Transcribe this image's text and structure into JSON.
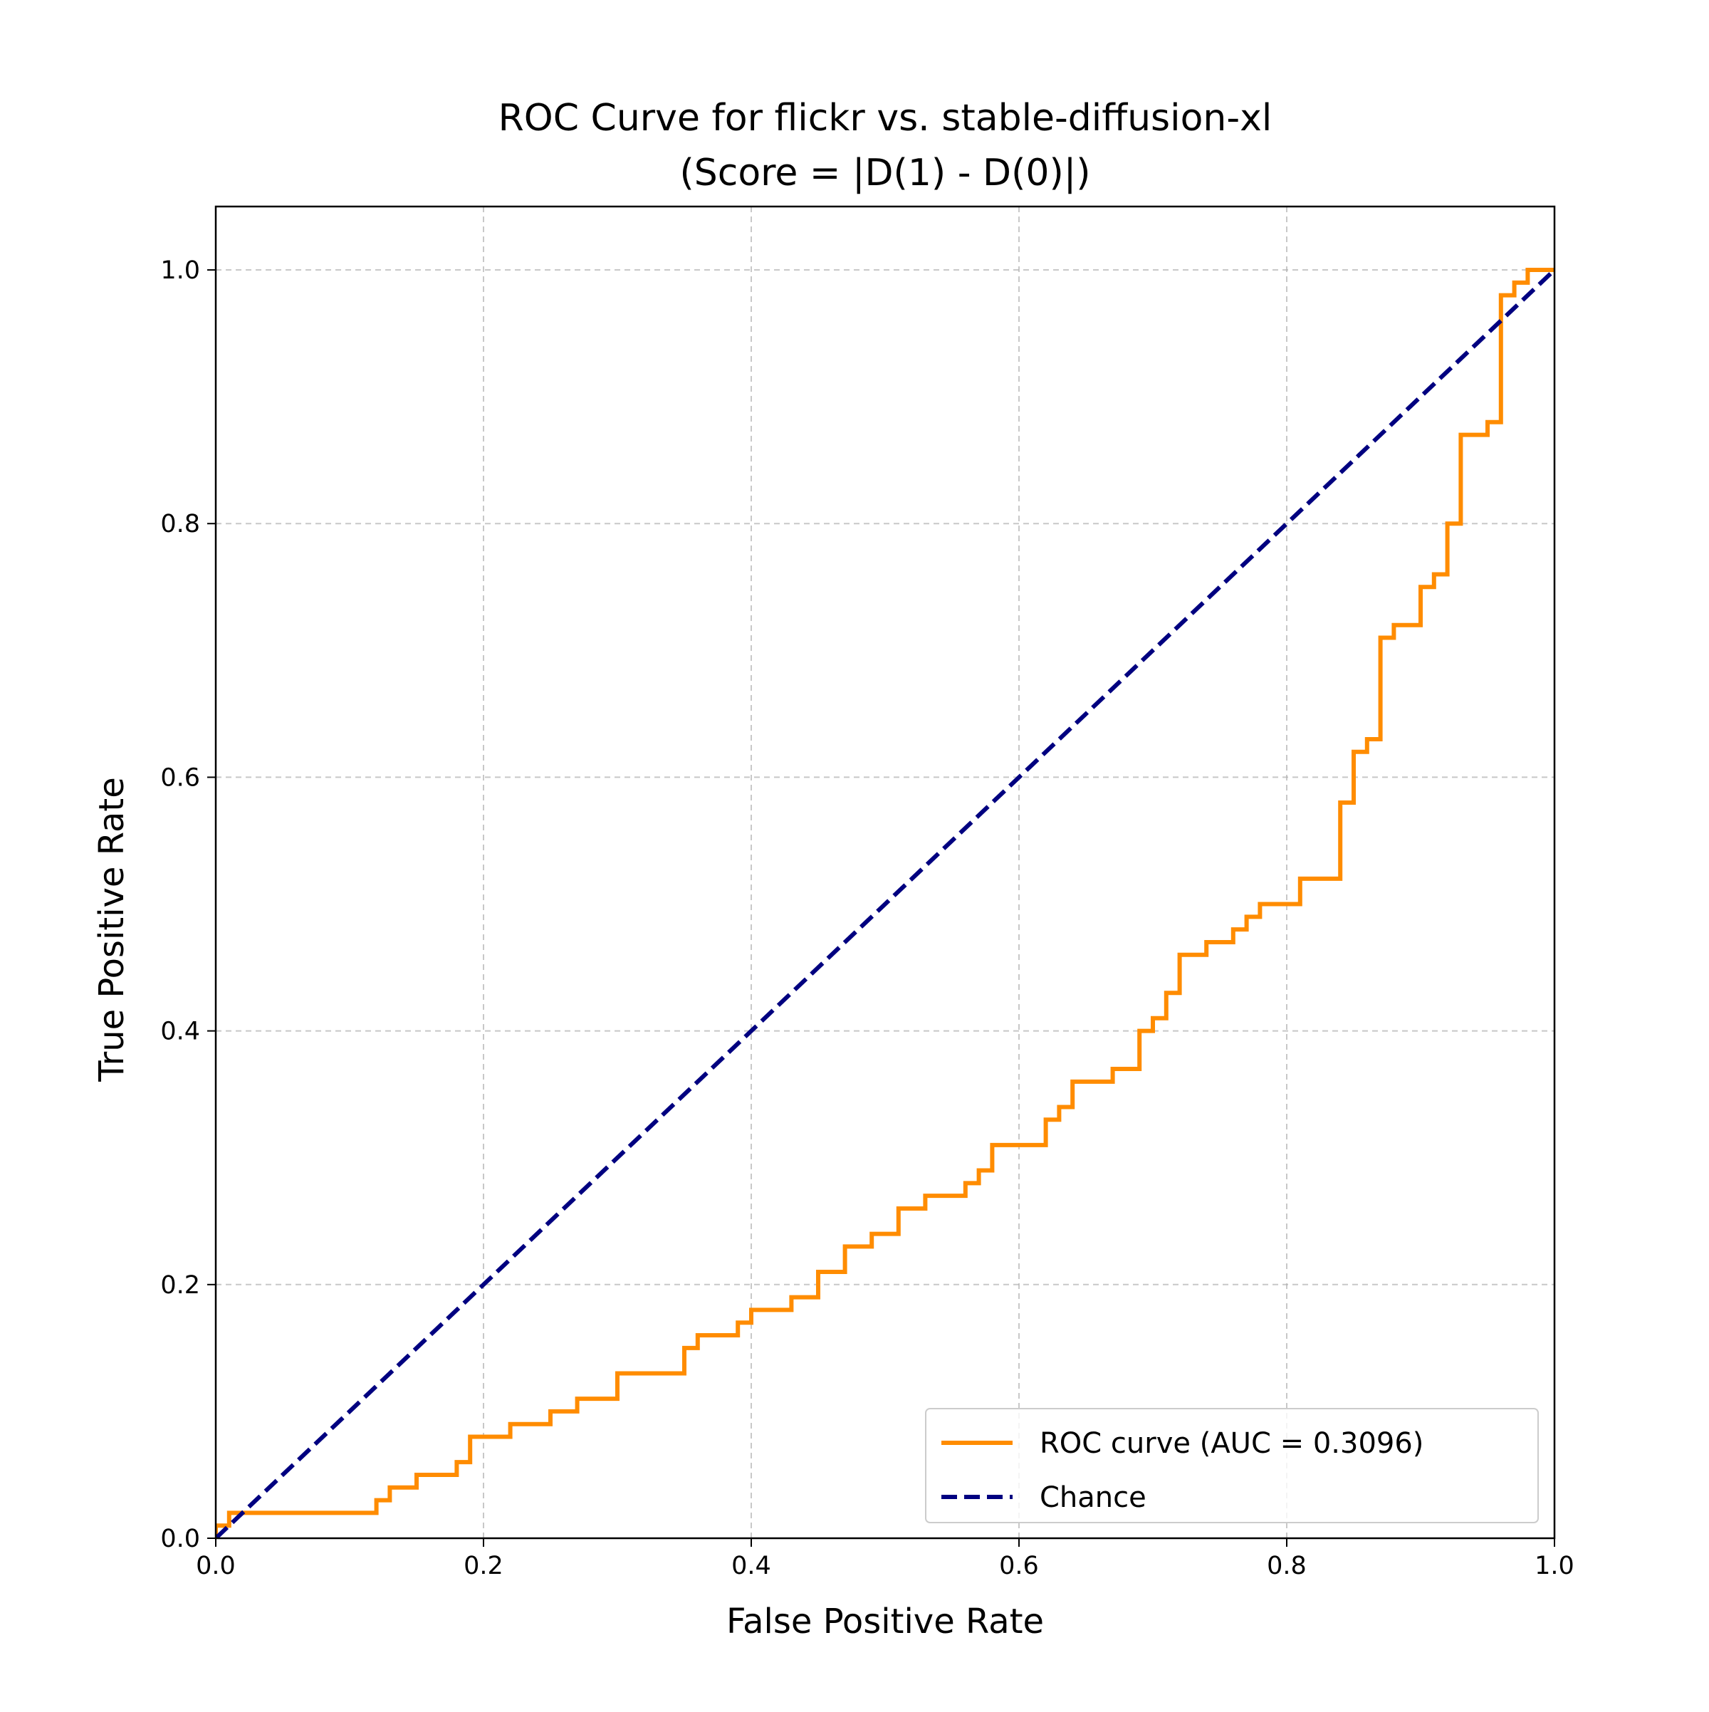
{
  "chart_data": {
    "type": "line",
    "title": [
      "ROC Curve for flickr vs. stable-diffusion-xl",
      "(Score = |D(1) - D(0)|)"
    ],
    "xlabel": "False Positive Rate",
    "ylabel": "True Positive Rate",
    "xlim": [
      0.0,
      1.0
    ],
    "ylim": [
      0.0,
      1.05
    ],
    "xticks": [
      0.0,
      0.2,
      0.4,
      0.6,
      0.8,
      1.0
    ],
    "yticks": [
      0.0,
      0.2,
      0.4,
      0.6,
      0.8,
      1.0
    ],
    "xtick_labels": [
      "0.0",
      "0.2",
      "0.4",
      "0.6",
      "0.8",
      "1.0"
    ],
    "ytick_labels": [
      "0.0",
      "0.2",
      "0.4",
      "0.6",
      "0.8",
      "1.0"
    ],
    "grid": true,
    "grid_style": "dashed",
    "legend_position": "lower-right",
    "series": [
      {
        "name": "ROC curve (AUC = 0.3096)",
        "color": "#ff8c00",
        "style": "solid",
        "x": [
          0.0,
          0.0,
          0.01,
          0.01,
          0.12,
          0.12,
          0.13,
          0.13,
          0.15,
          0.15,
          0.18,
          0.18,
          0.19,
          0.19,
          0.22,
          0.22,
          0.25,
          0.25,
          0.27,
          0.27,
          0.3,
          0.3,
          0.35,
          0.35,
          0.36,
          0.36,
          0.39,
          0.39,
          0.4,
          0.4,
          0.43,
          0.43,
          0.45,
          0.45,
          0.47,
          0.47,
          0.49,
          0.49,
          0.51,
          0.51,
          0.53,
          0.53,
          0.56,
          0.56,
          0.57,
          0.57,
          0.58,
          0.58,
          0.62,
          0.62,
          0.63,
          0.63,
          0.64,
          0.64,
          0.67,
          0.67,
          0.69,
          0.69,
          0.7,
          0.7,
          0.71,
          0.71,
          0.72,
          0.72,
          0.74,
          0.74,
          0.76,
          0.76,
          0.77,
          0.77,
          0.78,
          0.78,
          0.81,
          0.81,
          0.84,
          0.84,
          0.85,
          0.85,
          0.86,
          0.86,
          0.87,
          0.87,
          0.88,
          0.88,
          0.9,
          0.9,
          0.91,
          0.91,
          0.92,
          0.92,
          0.93,
          0.93,
          0.95,
          0.95,
          0.96,
          0.96,
          0.97,
          0.97,
          0.98,
          0.98,
          1.0
        ],
        "y": [
          0.0,
          0.01,
          0.01,
          0.02,
          0.02,
          0.03,
          0.03,
          0.04,
          0.04,
          0.05,
          0.05,
          0.06,
          0.06,
          0.08,
          0.08,
          0.09,
          0.09,
          0.1,
          0.1,
          0.11,
          0.11,
          0.13,
          0.13,
          0.15,
          0.15,
          0.16,
          0.16,
          0.17,
          0.17,
          0.18,
          0.18,
          0.19,
          0.19,
          0.21,
          0.21,
          0.23,
          0.23,
          0.24,
          0.24,
          0.26,
          0.26,
          0.27,
          0.27,
          0.28,
          0.28,
          0.29,
          0.29,
          0.31,
          0.31,
          0.33,
          0.33,
          0.34,
          0.34,
          0.36,
          0.36,
          0.37,
          0.37,
          0.4,
          0.4,
          0.41,
          0.41,
          0.43,
          0.43,
          0.46,
          0.46,
          0.47,
          0.47,
          0.48,
          0.48,
          0.49,
          0.49,
          0.5,
          0.5,
          0.52,
          0.52,
          0.58,
          0.58,
          0.62,
          0.62,
          0.63,
          0.63,
          0.71,
          0.71,
          0.72,
          0.72,
          0.75,
          0.75,
          0.76,
          0.76,
          0.8,
          0.8,
          0.87,
          0.87,
          0.88,
          0.88,
          0.98,
          0.98,
          0.99,
          0.99,
          1.0,
          1.0
        ]
      },
      {
        "name": "Chance",
        "color": "#000080",
        "style": "dashed",
        "x": [
          0.0,
          1.0
        ],
        "y": [
          0.0,
          1.0
        ]
      }
    ]
  }
}
